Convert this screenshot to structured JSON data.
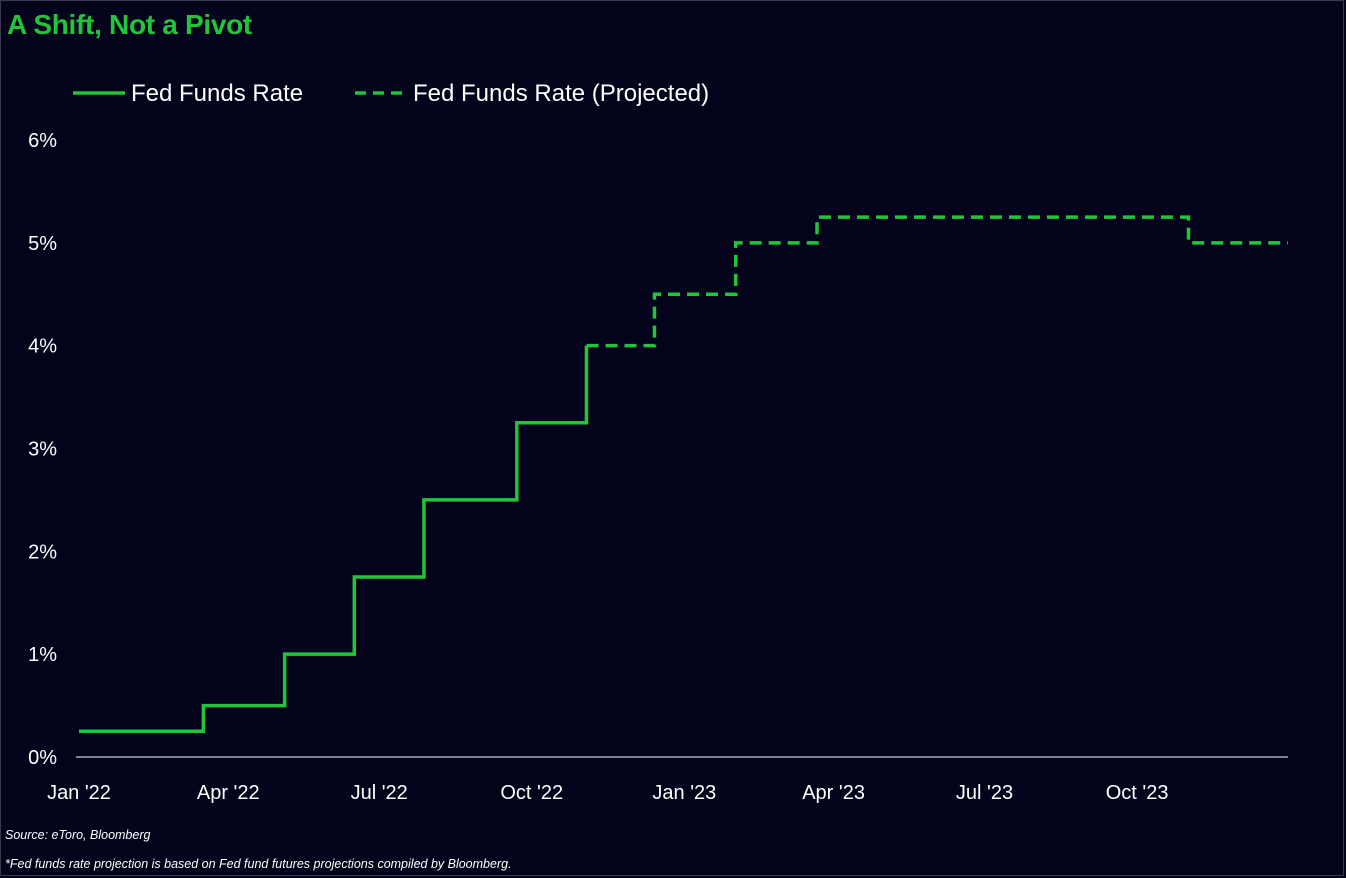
{
  "colors": {
    "background": "#03031b",
    "accent": "#22c53a",
    "text": "#ffffff",
    "axis": "#ffffff"
  },
  "chart_data": {
    "type": "line",
    "title": "A Shift, Not a Pivot",
    "xlabel": "",
    "ylabel": "",
    "ylim": [
      0,
      6
    ],
    "xlim": [
      "2022-01-01",
      "2023-12-31"
    ],
    "y_ticks": [
      "0%",
      "1%",
      "2%",
      "3%",
      "4%",
      "5%",
      "6%"
    ],
    "x_ticks": [
      {
        "date": "2022-01-01",
        "label": "Jan '22"
      },
      {
        "date": "2022-04-01",
        "label": "Apr '22"
      },
      {
        "date": "2022-07-01",
        "label": "Jul '22"
      },
      {
        "date": "2022-10-01",
        "label": "Oct '22"
      },
      {
        "date": "2023-01-01",
        "label": "Jan '23"
      },
      {
        "date": "2023-04-01",
        "label": "Apr '23"
      },
      {
        "date": "2023-07-01",
        "label": "Jul '23"
      },
      {
        "date": "2023-10-01",
        "label": "Oct '23"
      }
    ],
    "grid": false,
    "legend_position": "top-left",
    "series": [
      {
        "name": "Fed Funds Rate",
        "style": "solid",
        "step": true,
        "points": [
          {
            "x": "2022-01-01",
            "y": 0.25
          },
          {
            "x": "2022-03-17",
            "y": 0.5
          },
          {
            "x": "2022-05-05",
            "y": 1.0
          },
          {
            "x": "2022-06-16",
            "y": 1.75
          },
          {
            "x": "2022-07-28",
            "y": 2.5
          },
          {
            "x": "2022-09-22",
            "y": 3.25
          },
          {
            "x": "2022-11-03",
            "y": 4.0
          }
        ]
      },
      {
        "name": "Fed Funds Rate (Projected)",
        "style": "dashed",
        "step": true,
        "points": [
          {
            "x": "2022-11-03",
            "y": 4.0
          },
          {
            "x": "2022-12-14",
            "y": 4.5
          },
          {
            "x": "2023-02-01",
            "y": 5.0
          },
          {
            "x": "2023-03-22",
            "y": 5.25
          },
          {
            "x": "2023-11-01",
            "y": 5.0
          },
          {
            "x": "2023-12-31",
            "y": 5.0
          }
        ]
      }
    ]
  },
  "footer": {
    "source": "Source: eToro, Bloomberg",
    "note": "*Fed funds rate projection is based on Fed fund futures projections compiled by Bloomberg."
  }
}
